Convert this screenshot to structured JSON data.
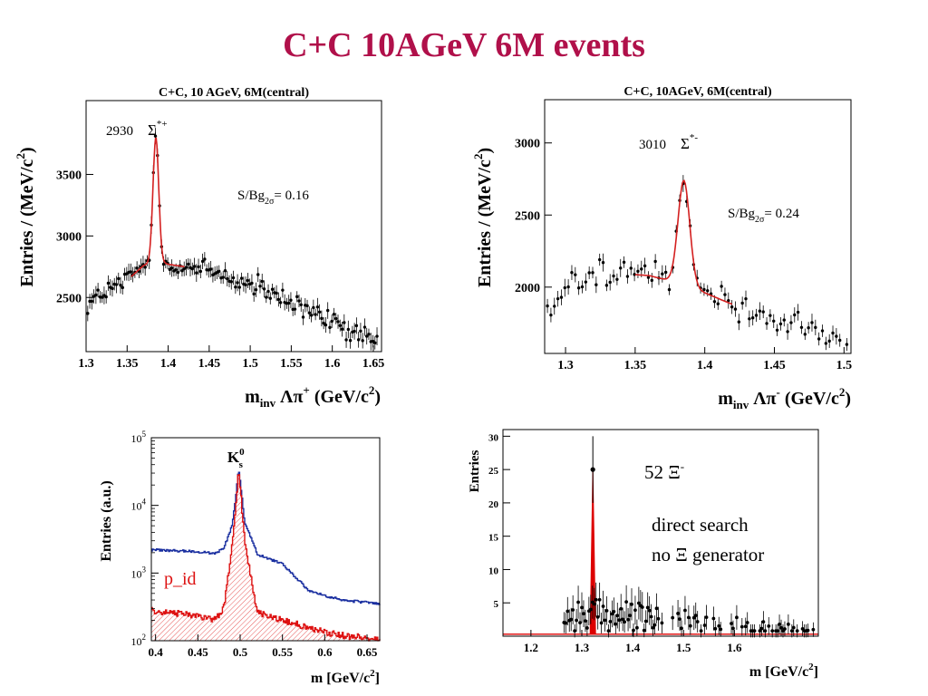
{
  "page": {
    "title": "C+C 10AGeV 6M events"
  },
  "chart_data": [
    {
      "id": "sigma-plus",
      "type": "scatter",
      "title": "C+C, 10 AGeV, 6M(central)",
      "xlabel_main": "m",
      "xlabel_sub": "inv",
      "xlabel_rest": " Λπ",
      "xlabel_sup": "+",
      "xlabel_unit": " (GeV/c",
      "xlabel_unit_sup": "2",
      "xlabel_close": ")",
      "ylabel": "Entries / (MeV/c",
      "ylabel_sup": "2",
      "ylabel_close": ")",
      "xlim": [
        1.3,
        1.66
      ],
      "ylim": [
        2060,
        4100
      ],
      "xticks": [
        1.3,
        1.35,
        1.4,
        1.45,
        1.5,
        1.55,
        1.6,
        1.65
      ],
      "xtick_labels": [
        "1.3",
        "1.35",
        "1.4",
        "1.45",
        "1.5",
        "1.55",
        "1.6",
        "1.65"
      ],
      "yticks": [
        2500,
        3000,
        3500
      ],
      "ytick_labels": [
        "2500",
        "3000",
        "3500"
      ],
      "count_label": "2930",
      "particle_label": "Σ",
      "particle_sup": "*+",
      "ratio_label": "S/Bg",
      "ratio_sub": "2σ",
      "ratio_value": "= 0.16",
      "peak": {
        "mass": 1.385,
        "sigma": 0.0035,
        "amp": 1000
      },
      "background": {
        "x": [
          1.3,
          1.35,
          1.37,
          1.385,
          1.4,
          1.45,
          1.5,
          1.55,
          1.6,
          1.65
        ],
        "y": [
          2450,
          2640,
          2760,
          2800,
          2770,
          2720,
          2600,
          2450,
          2300,
          2130
        ]
      },
      "fit_range": [
        1.355,
        1.42
      ],
      "fit_color": "#d42020"
    },
    {
      "id": "sigma-minus",
      "type": "scatter",
      "title": "C+C, 10AGeV, 6M(central)",
      "xlabel_main": "m",
      "xlabel_sub": "inv",
      "xlabel_rest": " Λπ",
      "xlabel_sup": "-",
      "xlabel_unit": " (GeV/c",
      "xlabel_unit_sup": "2",
      "xlabel_close": ")",
      "ylabel": "Entries / (MeV/c",
      "ylabel_sup": "2",
      "ylabel_close": ")",
      "xlim": [
        1.285,
        1.505
      ],
      "ylim": [
        1540,
        3300
      ],
      "xticks": [
        1.3,
        1.35,
        1.4,
        1.45,
        1.5
      ],
      "xtick_labels": [
        "1.3",
        "1.35",
        "1.4",
        "1.45",
        "1.5"
      ],
      "yticks": [
        2000,
        2500,
        3000
      ],
      "ytick_labels": [
        "2000",
        "2500",
        "3000"
      ],
      "count_label": "3010",
      "particle_label": "Σ",
      "particle_sup": "*-",
      "ratio_label": "S/Bg",
      "ratio_sub": "2σ",
      "ratio_value": "= 0.24",
      "peak": {
        "mass": 1.385,
        "sigma": 0.0042,
        "amp": 720
      },
      "background": {
        "x": [
          1.285,
          1.3,
          1.33,
          1.36,
          1.385,
          1.4,
          1.42,
          1.45,
          1.48,
          1.505
        ],
        "y": [
          1780,
          2000,
          2100,
          2080,
          2020,
          1960,
          1880,
          1780,
          1680,
          1600
        ]
      },
      "fit_range": [
        1.35,
        1.42
      ],
      "fit_color": "#d42020"
    },
    {
      "id": "k0s",
      "type": "line",
      "xlabel_main": "m [GeV/c",
      "xlabel_sup": "2",
      "xlabel_close": "]",
      "ylabel": "Entries (a.u.)",
      "xlim": [
        0.395,
        0.665
      ],
      "ylim_log10": [
        2,
        5
      ],
      "log_y": true,
      "xticks": [
        0.4,
        0.45,
        0.5,
        0.55,
        0.6,
        0.65
      ],
      "xtick_labels": [
        "0.4",
        "0.45",
        "0.5",
        "0.55",
        "0.6",
        "0.65"
      ],
      "ytick_exponents": [
        2,
        3,
        4,
        5
      ],
      "ytick_base": "10",
      "peak_label": "K",
      "peak_label_sup": "0",
      "peak_label_sub": "s",
      "annotation": "p_id",
      "annotation_color": "#dd1111",
      "peak_mass": 0.4977,
      "series": [
        {
          "color": "#1a2fa0",
          "x": [
            0.395,
            0.44,
            0.47,
            0.48,
            0.49,
            0.495,
            0.4977,
            0.5,
            0.505,
            0.52,
            0.55,
            0.58,
            0.6,
            0.62,
            0.665
          ],
          "y": [
            2200,
            2100,
            1950,
            2300,
            5000,
            16000,
            35000,
            20000,
            5500,
            1900,
            1350,
            560,
            460,
            400,
            350
          ]
        },
        {
          "color": "#dd1111",
          "hatched": true,
          "x": [
            0.395,
            0.44,
            0.47,
            0.48,
            0.49,
            0.495,
            0.4977,
            0.5,
            0.505,
            0.52,
            0.55,
            0.58,
            0.6,
            0.62,
            0.665
          ],
          "y": [
            280,
            240,
            205,
            300,
            2500,
            12000,
            33000,
            16000,
            2800,
            260,
            200,
            160,
            135,
            120,
            105
          ]
        }
      ]
    },
    {
      "id": "xi-minus",
      "type": "scatter",
      "xlabel_main": "m [GeV/c",
      "xlabel_sup": "2",
      "xlabel_close": "]",
      "ylabel": "Entries",
      "xlim": [
        1.145,
        1.765
      ],
      "ylim": [
        0,
        31
      ],
      "xticks": [
        1.2,
        1.3,
        1.4,
        1.5,
        1.6
      ],
      "xtick_labels": [
        "1.2",
        "1.3",
        "1.4",
        "1.5",
        "1.6"
      ],
      "yticks": [
        5,
        10,
        15,
        20,
        25,
        30
      ],
      "ytick_labels": [
        "5",
        "10",
        "15",
        "20",
        "25",
        "30"
      ],
      "count_label": "52 Ξ",
      "count_sup": "-",
      "notes": [
        "direct search",
        "no Ξ generator"
      ],
      "peak_mass": 1.3217,
      "peak_value": 25,
      "fit_color": "#dd0000"
    }
  ]
}
